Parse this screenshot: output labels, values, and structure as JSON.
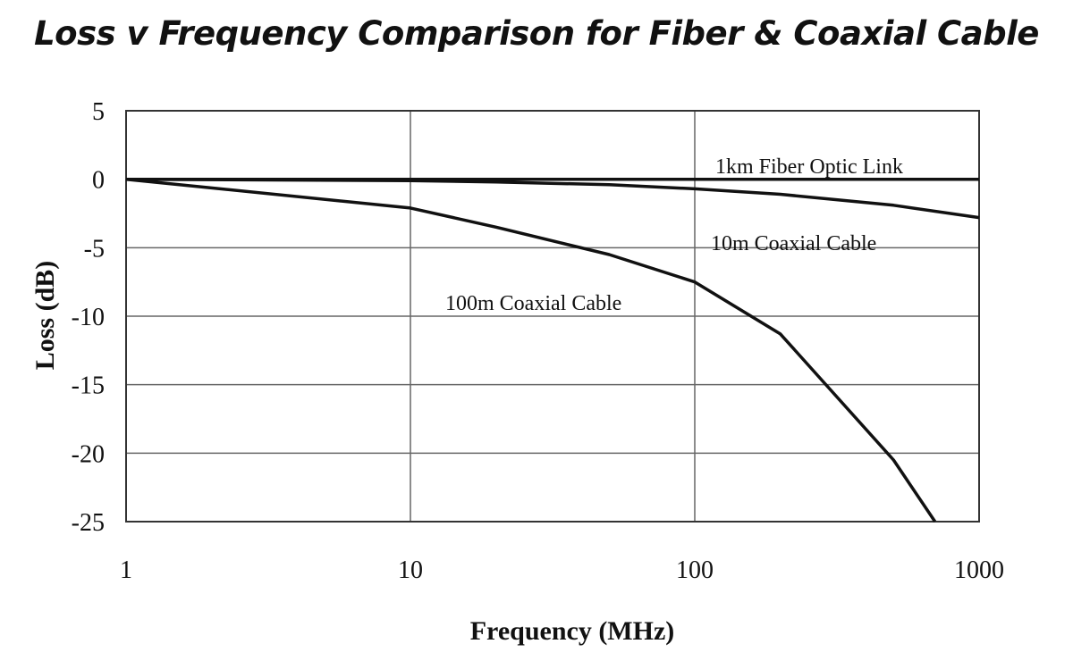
{
  "chart_data": {
    "type": "line",
    "title": "Loss v Frequency Comparison for Fiber & Coaxial Cable",
    "xlabel": "Frequency (MHz)",
    "ylabel": "Loss (dB)",
    "x_scale": "log",
    "xlim": [
      1,
      1000
    ],
    "ylim": [
      -25,
      5
    ],
    "x_ticks": [
      "1",
      "10",
      "100",
      "1000"
    ],
    "y_ticks": [
      "5",
      "0",
      "-5",
      "-10",
      "-15",
      "-20",
      "-25"
    ],
    "grid": true,
    "series": [
      {
        "name": "1km Fiber Optic Link",
        "x": [
          1,
          10,
          100,
          1000
        ],
        "y": [
          0,
          0,
          0,
          0
        ]
      },
      {
        "name": "10m Coaxial Cable",
        "x": [
          1,
          10,
          20,
          50,
          100,
          200,
          500,
          1000
        ],
        "y": [
          0,
          -0.1,
          -0.2,
          -0.4,
          -0.7,
          -1.1,
          -1.9,
          -2.8
        ]
      },
      {
        "name": "100m Coaxial Cable",
        "x": [
          1,
          10,
          20,
          50,
          100,
          200,
          500,
          700
        ],
        "y": [
          0,
          -2.1,
          -3.5,
          -5.5,
          -7.5,
          -11.3,
          -20.5,
          -25
        ]
      }
    ]
  }
}
